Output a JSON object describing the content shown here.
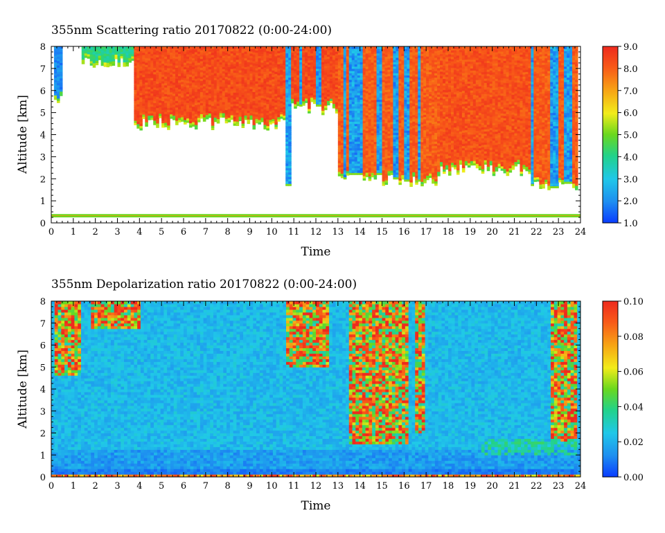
{
  "chart_data": [
    {
      "type": "heatmap",
      "title": "355nm Scattering ratio  20170822 (0:00-24:00)",
      "xlabel": "Time",
      "ylabel": "Altitude [km]",
      "xlim": [
        0,
        24
      ],
      "ylim": [
        0,
        8
      ],
      "x_ticks": [
        "0",
        "1",
        "2",
        "3",
        "4",
        "5",
        "6",
        "7",
        "8",
        "9",
        "10",
        "11",
        "12",
        "13",
        "14",
        "15",
        "16",
        "17",
        "18",
        "19",
        "20",
        "21",
        "22",
        "23",
        "24"
      ],
      "y_ticks": [
        "0",
        "1",
        "2",
        "3",
        "4",
        "5",
        "6",
        "7",
        "8"
      ],
      "colorbar": {
        "range": [
          1.0,
          9.0
        ],
        "ticks": [
          "1.0",
          "2.0",
          "3.0",
          "4.0",
          "5.0",
          "6.0",
          "7.0",
          "8.0",
          "9.0"
        ]
      },
      "features": {
        "surface_layer_km": [
          0.25,
          0.4
        ],
        "cloud_regions": [
          {
            "t_start": 0.1,
            "t_end": 0.45,
            "base_km": 5.5,
            "top_km": 8.0,
            "value": 2.0
          },
          {
            "t_start": 1.4,
            "t_end": 3.9,
            "base_km": 7.2,
            "top_km": 8.0,
            "value": 4.0
          },
          {
            "t_start": 3.8,
            "t_end": 10.6,
            "base_km": 4.5,
            "top_km": 8.0,
            "value": 8.3
          },
          {
            "t_start": 10.6,
            "t_end": 13.3,
            "base_km": 5.2,
            "top_km": 8.0,
            "value": 8.3
          },
          {
            "t_start": 13.0,
            "t_end": 17.6,
            "base_km": 1.9,
            "top_km": 8.0,
            "value": 8.0
          },
          {
            "t_start": 17.6,
            "t_end": 21.7,
            "base_km": 2.4,
            "top_km": 8.0,
            "value": 8.2
          },
          {
            "t_start": 21.7,
            "t_end": 23.9,
            "base_km": 1.6,
            "top_km": 8.0,
            "value": 8.0
          }
        ],
        "low_value_columns": [
          {
            "t": 10.8,
            "width": 0.2,
            "base_km": 1.7
          },
          {
            "t": 11.3,
            "width": 0.12,
            "base_km": 5.3
          },
          {
            "t": 12.1,
            "width": 0.18,
            "base_km": 5.3
          },
          {
            "t": 13.3,
            "width": 0.15,
            "base_km": 2.0
          },
          {
            "t": 13.8,
            "width": 0.5,
            "base_km": 2.2
          },
          {
            "t": 14.9,
            "width": 0.25,
            "base_km": 2.2
          },
          {
            "t": 15.6,
            "width": 0.2,
            "base_km": 2.0
          },
          {
            "t": 16.1,
            "width": 0.2,
            "base_km": 1.9
          },
          {
            "t": 16.7,
            "width": 0.15,
            "base_km": 1.9
          },
          {
            "t": 21.8,
            "width": 0.15,
            "base_km": 1.7
          },
          {
            "t": 22.8,
            "width": 0.25,
            "base_km": 1.6
          },
          {
            "t": 23.4,
            "width": 0.3,
            "base_km": 1.8
          }
        ]
      }
    },
    {
      "type": "heatmap",
      "title": "355nm Depolarization ratio  20170822 (0:00-24:00)",
      "xlabel": "Time",
      "ylabel": "Altitude [km]",
      "xlim": [
        0,
        24
      ],
      "ylim": [
        0,
        8
      ],
      "x_ticks": [
        "0",
        "1",
        "2",
        "3",
        "4",
        "5",
        "6",
        "7",
        "8",
        "9",
        "10",
        "11",
        "12",
        "13",
        "14",
        "15",
        "16",
        "17",
        "18",
        "19",
        "20",
        "21",
        "22",
        "23",
        "24"
      ],
      "y_ticks": [
        "0",
        "1",
        "2",
        "3",
        "4",
        "5",
        "6",
        "7",
        "8"
      ],
      "colorbar": {
        "range": [
          0.0,
          0.1
        ],
        "ticks": [
          "0.00",
          "0.02",
          "0.04",
          "0.06",
          "0.08",
          "0.10"
        ]
      },
      "features": {
        "background_value": 0.022,
        "surface_band_km": [
          0.05,
          0.4
        ],
        "high_depol_regions": [
          {
            "t_start": 0.1,
            "t_end": 1.3,
            "base_km": 4.6,
            "top_km": 8.0
          },
          {
            "t_start": 1.8,
            "t_end": 4.0,
            "base_km": 6.8,
            "top_km": 8.0
          },
          {
            "t_start": 10.7,
            "t_end": 12.6,
            "base_km": 5.0,
            "top_km": 8.0
          },
          {
            "t_start": 13.5,
            "t_end": 16.2,
            "base_km": 1.5,
            "top_km": 8.0
          },
          {
            "t_start": 16.5,
            "t_end": 16.9,
            "base_km": 2.0,
            "top_km": 8.0
          },
          {
            "t_start": 22.7,
            "t_end": 23.9,
            "base_km": 1.6,
            "top_km": 8.0
          }
        ],
        "low_layer_region": {
          "t_start": 19.5,
          "t_end": 23.8,
          "base_km": 1.0,
          "top_km": 1.8
        }
      }
    }
  ]
}
